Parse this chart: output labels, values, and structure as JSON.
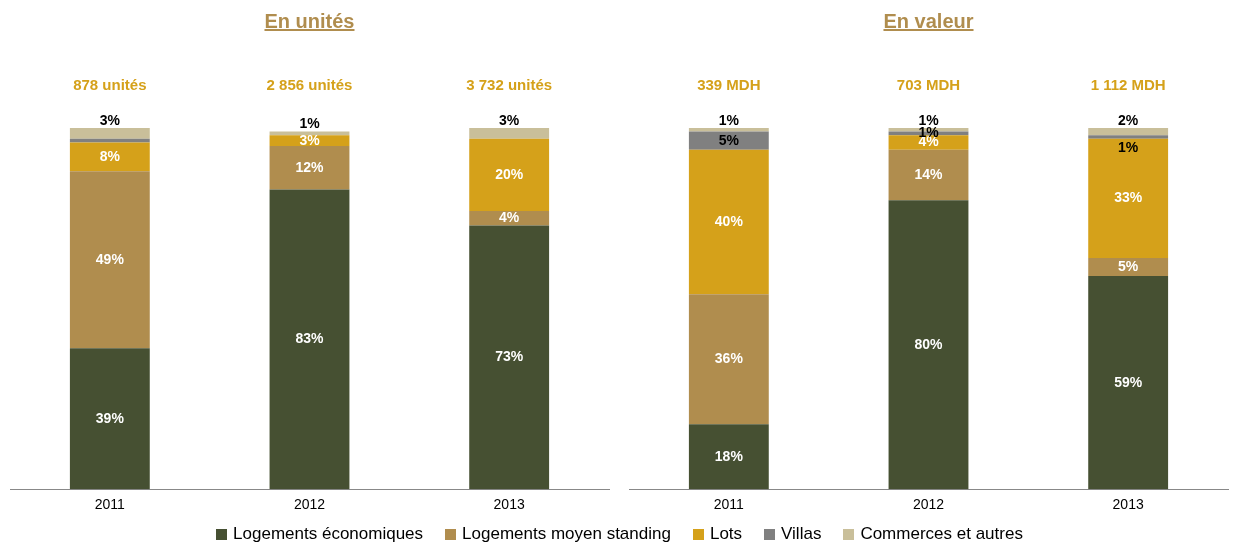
{
  "chart_data": [
    {
      "type": "bar",
      "title": "En unités",
      "stacked": true,
      "legend": "bottom",
      "categories": [
        "2011",
        "2012",
        "2013"
      ],
      "annotations": [
        "878 unités",
        "2 856 unités",
        "3 732 unités"
      ],
      "series": [
        {
          "name": "Logements économiques",
          "color": "#465032",
          "values": [
            39,
            83,
            73
          ],
          "value_labels": [
            "39%",
            "83%",
            "73%"
          ]
        },
        {
          "name": "Logements moyen standing",
          "color": "#b08d4e",
          "values": [
            49,
            12,
            4
          ],
          "value_labels": [
            "49%",
            "12%",
            "4%"
          ]
        },
        {
          "name": "Lots",
          "color": "#d5a11a",
          "values": [
            8,
            3,
            20
          ],
          "value_labels": [
            "8%",
            "3%",
            "20%"
          ]
        },
        {
          "name": "Villas",
          "color": "#808080",
          "values": [
            1,
            0,
            0
          ],
          "value_labels": [
            null,
            null,
            null
          ]
        },
        {
          "name": "Commerces et autres",
          "color": "#c9bf9a",
          "values": [
            3,
            1,
            3
          ],
          "value_labels": [
            "3%",
            "1%",
            "3%"
          ]
        }
      ]
    },
    {
      "type": "bar",
      "title": "En valeur",
      "stacked": true,
      "categories": [
        "2011",
        "2012",
        "2013"
      ],
      "annotations": [
        "339 MDH",
        "703 MDH",
        "1 112 MDH"
      ],
      "series": [
        {
          "color": "#465032",
          "values": [
            18,
            80,
            59
          ],
          "value_labels": [
            "18%",
            "80%",
            "59%"
          ]
        },
        {
          "color": "#b08d4e",
          "values": [
            36,
            14,
            5
          ],
          "value_labels": [
            "36%",
            "14%",
            "5%"
          ]
        },
        {
          "color": "#d5a11a",
          "values": [
            40,
            4,
            33
          ],
          "value_labels": [
            "40%",
            "4%",
            "33%"
          ]
        },
        {
          "color": "#808080",
          "values": [
            5,
            1,
            1
          ],
          "value_labels": [
            "5%",
            "1%",
            "1%"
          ]
        },
        {
          "color": "#c9bf9a",
          "values": [
            1,
            1,
            2
          ],
          "value_labels": [
            "1%",
            "1%",
            "2%"
          ]
        }
      ]
    }
  ]
}
